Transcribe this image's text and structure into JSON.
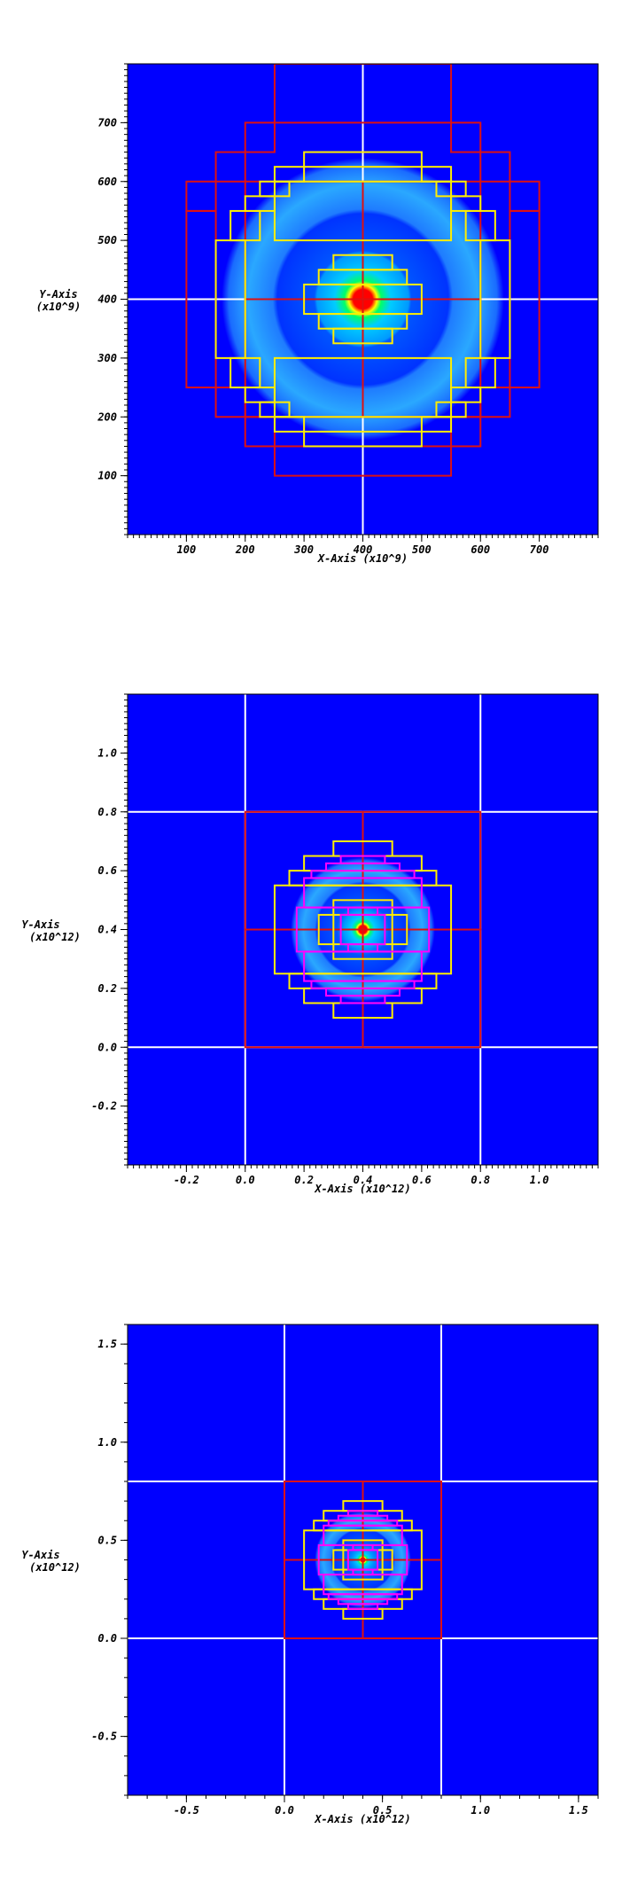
{
  "chart_data": [
    {
      "type": "heatmap",
      "title": "",
      "xlabel": "X-Axis (x10^9)",
      "ylabel": "Y-Axis",
      "ylabel_unit": "(x10^9)",
      "xlim": [
        0,
        800
      ],
      "ylim": [
        0,
        800
      ],
      "xticks": [
        100,
        200,
        300,
        400,
        500,
        600,
        700
      ],
      "yticks": [
        100,
        200,
        300,
        400,
        500,
        600,
        700
      ],
      "xtick_labels": [
        "100",
        "200",
        "300",
        "400",
        "500",
        "600",
        "700"
      ],
      "ytick_labels": [
        "100",
        "200",
        "300",
        "400",
        "500",
        "600",
        "700"
      ],
      "background_color": "#0000ff",
      "field": {
        "center": [
          400,
          400
        ],
        "core_radius": 30,
        "ring_inner": 150,
        "ring_outer": 240
      },
      "white_lines": {
        "x": [
          400
        ],
        "y": [
          400
        ]
      },
      "red_boxes": [
        [
          250,
          550,
          700,
          800
        ],
        [
          200,
          250,
          650,
          700
        ],
        [
          550,
          600,
          650,
          700
        ],
        [
          150,
          200,
          600,
          650
        ],
        [
          600,
          650,
          600,
          650
        ],
        [
          100,
          150,
          550,
          600
        ],
        [
          650,
          700,
          550,
          600
        ],
        [
          100,
          150,
          250,
          550
        ],
        [
          650,
          700,
          250,
          550
        ],
        [
          150,
          200,
          200,
          250
        ],
        [
          600,
          650,
          200,
          250
        ],
        [
          200,
          250,
          150,
          200
        ],
        [
          550,
          600,
          150,
          200
        ],
        [
          250,
          550,
          100,
          150
        ],
        [
          200,
          400,
          400,
          600
        ],
        [
          400,
          600,
          400,
          600
        ],
        [
          200,
          400,
          200,
          400
        ],
        [
          400,
          600,
          200,
          400
        ]
      ],
      "yellow_boxes": [
        [
          300,
          500,
          625,
          650
        ],
        [
          250,
          300,
          600,
          625
        ],
        [
          500,
          550,
          600,
          625
        ],
        [
          225,
          275,
          575,
          600
        ],
        [
          525,
          575,
          575,
          600
        ],
        [
          200,
          250,
          550,
          575
        ],
        [
          550,
          600,
          550,
          575
        ],
        [
          175,
          225,
          500,
          550
        ],
        [
          575,
          625,
          500,
          550
        ],
        [
          150,
          200,
          300,
          500
        ],
        [
          600,
          650,
          300,
          500
        ],
        [
          175,
          225,
          250,
          300
        ],
        [
          575,
          625,
          250,
          300
        ],
        [
          200,
          250,
          225,
          250
        ],
        [
          550,
          600,
          225,
          250
        ],
        [
          225,
          275,
          200,
          225
        ],
        [
          525,
          575,
          200,
          225
        ],
        [
          250,
          300,
          175,
          200
        ],
        [
          500,
          550,
          175,
          200
        ],
        [
          300,
          500,
          150,
          175
        ],
        [
          350,
          450,
          450,
          475
        ],
        [
          325,
          475,
          425,
          450
        ],
        [
          300,
          500,
          375,
          425
        ],
        [
          325,
          475,
          350,
          375
        ],
        [
          350,
          450,
          325,
          350
        ],
        [
          250,
          550,
          500,
          600
        ],
        [
          250,
          550,
          200,
          300
        ]
      ],
      "magenta_boxes": []
    },
    {
      "type": "heatmap",
      "title": "",
      "xlabel": "X-Axis (x10^12)",
      "ylabel": "Y-Axis",
      "ylabel_unit": "(x10^12)",
      "xlim": [
        -0.4,
        1.2
      ],
      "ylim": [
        -0.4,
        1.2
      ],
      "xticks": [
        -0.2,
        0.0,
        0.2,
        0.4,
        0.6,
        0.8,
        1.0
      ],
      "yticks": [
        -0.2,
        0.0,
        0.2,
        0.4,
        0.6,
        0.8,
        1.0
      ],
      "xtick_labels": [
        "-0.2",
        "0.0",
        "0.2",
        "0.4",
        "0.6",
        "0.8",
        "1.0"
      ],
      "ytick_labels": [
        "-0.2",
        "0.0",
        "0.2",
        "0.4",
        "0.6",
        "0.8",
        "1.0"
      ],
      "background_color": "#0000ff",
      "field": {
        "center": [
          0.4,
          0.4
        ],
        "core_radius": 0.025,
        "ring_inner": 0.16,
        "ring_outer": 0.245
      },
      "white_lines": {
        "x": [
          0.0,
          0.8
        ],
        "y": [
          0.0,
          0.8
        ]
      },
      "red_boxes": [
        [
          0.0,
          0.4,
          0.4,
          0.8
        ],
        [
          0.4,
          0.8,
          0.4,
          0.8
        ],
        [
          0.0,
          0.4,
          0.0,
          0.4
        ],
        [
          0.4,
          0.8,
          0.0,
          0.4
        ]
      ],
      "yellow_boxes": [
        [
          0.3,
          0.5,
          0.65,
          0.7
        ],
        [
          0.2,
          0.6,
          0.6,
          0.65
        ],
        [
          0.15,
          0.65,
          0.55,
          0.6
        ],
        [
          0.1,
          0.7,
          0.25,
          0.55
        ],
        [
          0.15,
          0.65,
          0.2,
          0.25
        ],
        [
          0.2,
          0.6,
          0.15,
          0.2
        ],
        [
          0.3,
          0.5,
          0.1,
          0.15
        ],
        [
          0.3,
          0.5,
          0.3,
          0.5
        ],
        [
          0.25,
          0.55,
          0.35,
          0.45
        ]
      ],
      "magenta_boxes": [
        [
          0.325,
          0.475,
          0.625,
          0.65
        ],
        [
          0.275,
          0.525,
          0.6,
          0.625
        ],
        [
          0.225,
          0.575,
          0.575,
          0.6
        ],
        [
          0.2,
          0.6,
          0.475,
          0.575
        ],
        [
          0.175,
          0.625,
          0.325,
          0.475
        ],
        [
          0.2,
          0.6,
          0.225,
          0.325
        ],
        [
          0.225,
          0.575,
          0.2,
          0.225
        ],
        [
          0.275,
          0.525,
          0.175,
          0.2
        ],
        [
          0.325,
          0.475,
          0.15,
          0.175
        ],
        [
          0.35,
          0.45,
          0.45,
          0.475
        ],
        [
          0.325,
          0.475,
          0.35,
          0.45
        ],
        [
          0.35,
          0.45,
          0.325,
          0.35
        ]
      ]
    },
    {
      "type": "heatmap",
      "title": "",
      "xlabel": "X-Axis (x10^12)",
      "ylabel": "Y-Axis",
      "ylabel_unit": "(x10^12)",
      "xlim": [
        -0.8,
        1.6
      ],
      "ylim": [
        -0.8,
        1.6
      ],
      "xticks": [
        -0.5,
        0.0,
        0.5,
        1.0,
        1.5
      ],
      "yticks": [
        -0.5,
        0.0,
        0.5,
        1.0,
        1.5
      ],
      "xtick_labels": [
        "-0.5",
        "0.0",
        "0.5",
        "1.0",
        "1.5"
      ],
      "ytick_labels": [
        "-0.5",
        "0.0",
        "0.5",
        "1.0",
        "1.5"
      ],
      "background_color": "#0000ff",
      "field": {
        "center": [
          0.4,
          0.4
        ],
        "core_radius": 0.02,
        "ring_inner": 0.16,
        "ring_outer": 0.245
      },
      "white_lines": {
        "x": [
          0.0,
          0.8
        ],
        "y": [
          0.0,
          0.8
        ]
      },
      "red_boxes": [
        [
          0.0,
          0.4,
          0.4,
          0.8
        ],
        [
          0.4,
          0.8,
          0.4,
          0.8
        ],
        [
          0.0,
          0.4,
          0.0,
          0.4
        ],
        [
          0.4,
          0.8,
          0.0,
          0.4
        ]
      ],
      "yellow_boxes": [
        [
          0.3,
          0.5,
          0.65,
          0.7
        ],
        [
          0.2,
          0.6,
          0.6,
          0.65
        ],
        [
          0.15,
          0.65,
          0.55,
          0.6
        ],
        [
          0.1,
          0.7,
          0.25,
          0.55
        ],
        [
          0.15,
          0.65,
          0.2,
          0.25
        ],
        [
          0.2,
          0.6,
          0.15,
          0.2
        ],
        [
          0.3,
          0.5,
          0.1,
          0.15
        ],
        [
          0.3,
          0.5,
          0.3,
          0.5
        ],
        [
          0.25,
          0.55,
          0.35,
          0.45
        ]
      ],
      "magenta_boxes": [
        [
          0.325,
          0.475,
          0.625,
          0.65
        ],
        [
          0.275,
          0.525,
          0.6,
          0.625
        ],
        [
          0.225,
          0.575,
          0.575,
          0.6
        ],
        [
          0.2,
          0.6,
          0.475,
          0.575
        ],
        [
          0.175,
          0.625,
          0.325,
          0.475
        ],
        [
          0.2,
          0.6,
          0.225,
          0.325
        ],
        [
          0.225,
          0.575,
          0.2,
          0.225
        ],
        [
          0.275,
          0.525,
          0.175,
          0.2
        ],
        [
          0.325,
          0.475,
          0.15,
          0.175
        ],
        [
          0.35,
          0.45,
          0.45,
          0.475
        ],
        [
          0.325,
          0.475,
          0.35,
          0.45
        ],
        [
          0.35,
          0.45,
          0.325,
          0.35
        ]
      ]
    }
  ],
  "colors": {
    "background": "#0000ff",
    "red_grid": "#dd1111",
    "yellow_grid": "#ffee00",
    "magenta_grid": "#ff00ff",
    "white_grid": "#ffffff"
  }
}
